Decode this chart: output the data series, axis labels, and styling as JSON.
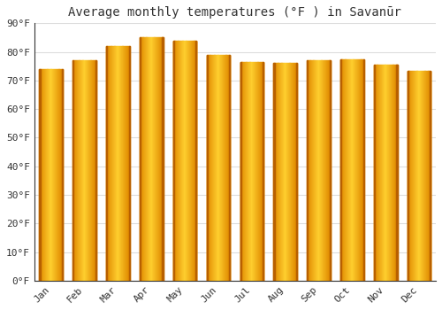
{
  "title": "Average monthly temperatures (°F ) in Savanūr",
  "months": [
    "Jan",
    "Feb",
    "Mar",
    "Apr",
    "May",
    "Jun",
    "Jul",
    "Aug",
    "Sep",
    "Oct",
    "Nov",
    "Dec"
  ],
  "values": [
    74,
    77,
    82,
    85,
    84,
    79,
    76.5,
    76,
    77,
    77.5,
    75.5,
    73.5
  ],
  "bar_color_left": "#E08800",
  "bar_color_center": "#FFD030",
  "bar_color_right": "#E08800",
  "background_color": "#FFFFFF",
  "fig_background": "#FFFFFF",
  "grid_color": "#DDDDDD",
  "ylim": [
    0,
    90
  ],
  "yticks": [
    0,
    10,
    20,
    30,
    40,
    50,
    60,
    70,
    80,
    90
  ],
  "ytick_labels": [
    "0°F",
    "10°F",
    "20°F",
    "30°F",
    "40°F",
    "50°F",
    "60°F",
    "70°F",
    "80°F",
    "90°F"
  ],
  "title_fontsize": 10,
  "tick_fontsize": 8,
  "font_family": "monospace",
  "bar_width": 0.7,
  "spine_color": "#333333"
}
